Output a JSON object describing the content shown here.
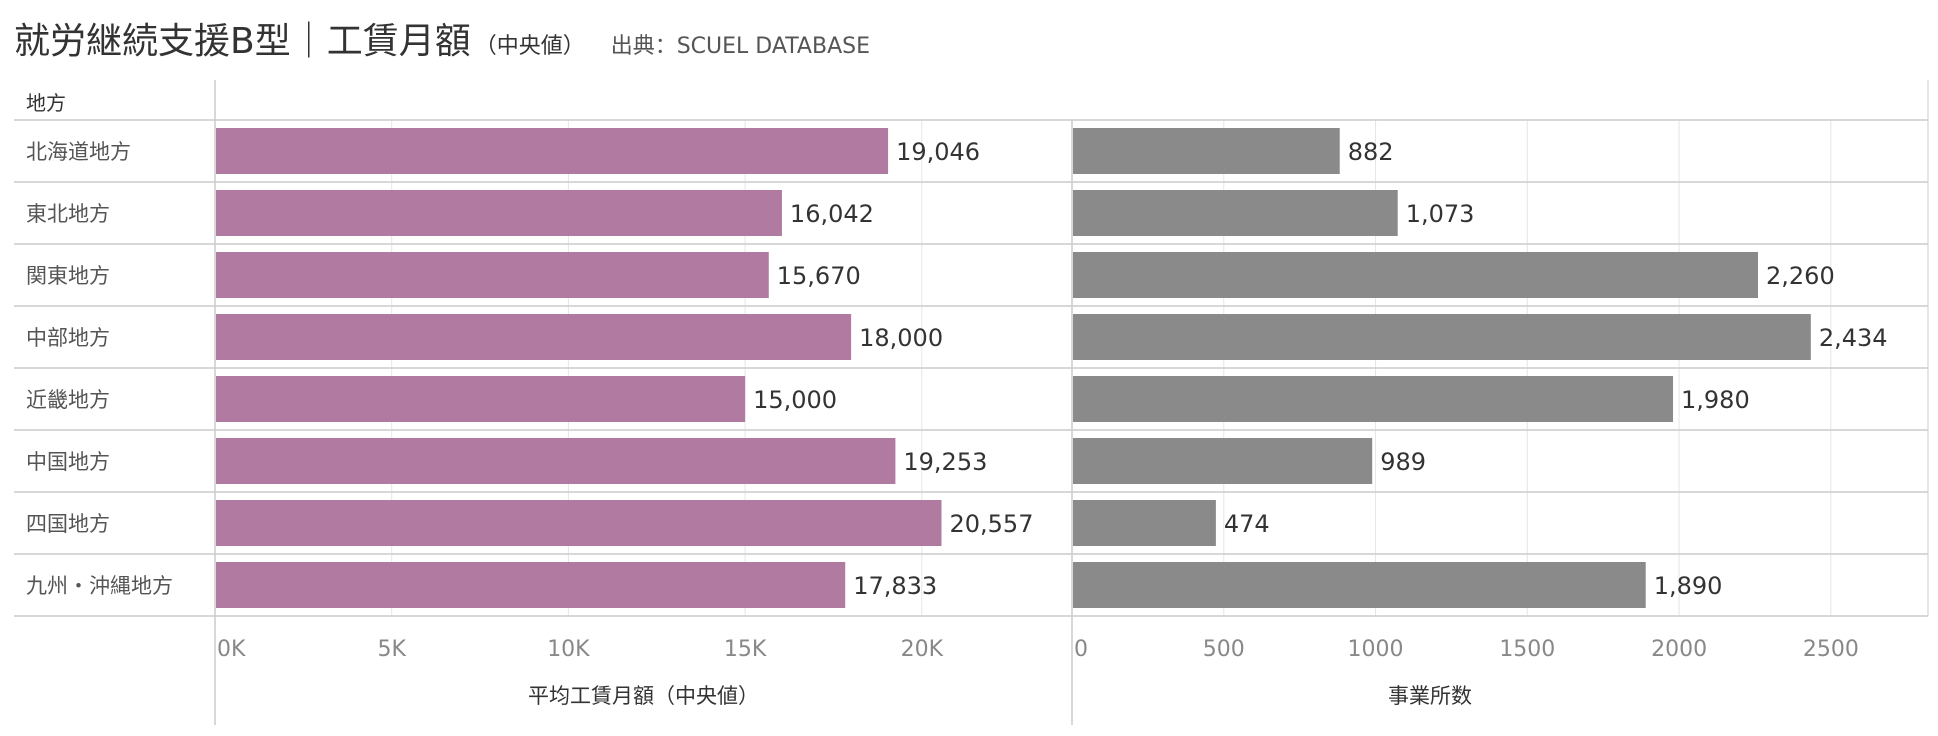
{
  "title": {
    "main": "就労継続支援B型｜工賃月額",
    "sub": "（中央値）",
    "source": "出典：SCUEL DATABASE"
  },
  "colors": {
    "wage_bar": "#b07aa1",
    "count_bar": "#8a8a8a",
    "grid": "#e6e6e6",
    "border": "#cccccc",
    "text": "#333333",
    "tick": "#888888"
  },
  "chart_data": [
    {
      "type": "bar",
      "orientation": "horizontal",
      "row_header": "地方",
      "categories": [
        "北海道地方",
        "東北地方",
        "関東地方",
        "中部地方",
        "近畿地方",
        "中国地方",
        "四国地方",
        "九州・沖縄地方"
      ],
      "series": [
        {
          "name": "平均工賃月額（中央値）",
          "values": [
            19046,
            16042,
            15670,
            18000,
            15000,
            19253,
            20557,
            17833
          ]
        }
      ],
      "value_labels": [
        "19,046",
        "16,042",
        "15,670",
        "18,000",
        "15,000",
        "19,253",
        "20,557",
        "17,833"
      ],
      "xlabel": "平均工賃月額（中央値）",
      "xlim": [
        0,
        24250
      ],
      "xticks": [
        0,
        5000,
        10000,
        15000,
        20000
      ],
      "xtick_labels": [
        "0K",
        "5K",
        "10K",
        "15K",
        "20K"
      ],
      "grid": true
    },
    {
      "type": "bar",
      "orientation": "horizontal",
      "categories": [
        "北海道地方",
        "東北地方",
        "関東地方",
        "中部地方",
        "近畿地方",
        "中国地方",
        "四国地方",
        "九州・沖縄地方"
      ],
      "series": [
        {
          "name": "事業所数",
          "values": [
            882,
            1073,
            2260,
            2434,
            1980,
            989,
            474,
            1890
          ]
        }
      ],
      "value_labels": [
        "882",
        "1,073",
        "2,260",
        "2,434",
        "1,980",
        "989",
        "474",
        "1,890"
      ],
      "xlabel": "事業所数",
      "xlim": [
        0,
        2820
      ],
      "xticks": [
        0,
        500,
        1000,
        1500,
        2000,
        2500
      ],
      "xtick_labels": [
        "0",
        "500",
        "1000",
        "1500",
        "2000",
        "2500"
      ],
      "grid": true
    }
  ]
}
